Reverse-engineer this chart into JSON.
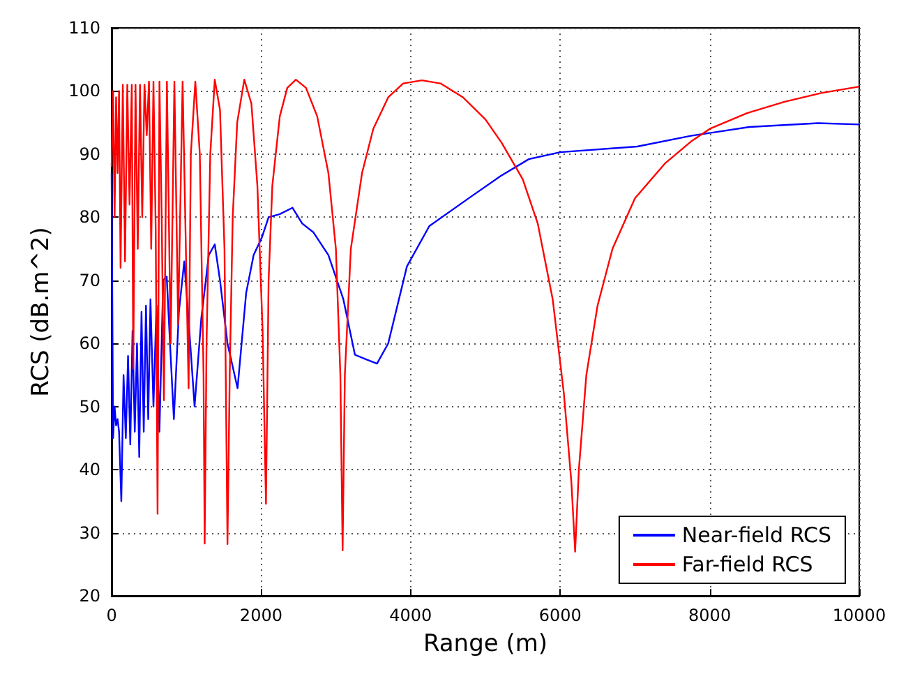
{
  "chart_data": {
    "type": "line",
    "xlabel": "Range (m)",
    "ylabel": "RCS (dB.m^2)",
    "xlim": [
      0,
      10000
    ],
    "xticks": [
      0,
      2000,
      4000,
      6000,
      8000,
      10000
    ],
    "ylim": [
      20,
      110
    ],
    "yticks": [
      20,
      30,
      40,
      50,
      60,
      70,
      80,
      90,
      100,
      110
    ],
    "grid": true,
    "legend": "bottom right",
    "marker": "none",
    "line_style": "solid",
    "series": [
      {
        "name": "Near-field RCS",
        "color": "#0000ff",
        "x": [
          0,
          20,
          40,
          60,
          80,
          100,
          130,
          160,
          190,
          220,
          250,
          280,
          310,
          340,
          370,
          400,
          430,
          460,
          490,
          520,
          560,
          600,
          640,
          690,
          737,
          790,
          833,
          900,
          972,
          1040,
          1110,
          1200,
          1300,
          1380,
          1450,
          1550,
          1685,
          1800,
          1900,
          2010,
          2100,
          2250,
          2420,
          2550,
          2700,
          2900,
          3100,
          3255,
          3400,
          3550,
          3700,
          3950,
          4250,
          4800,
          5200,
          5580,
          6000,
          7030,
          7750,
          8530,
          9450,
          10000
        ],
        "values": [
          87,
          45,
          50,
          47,
          48,
          46,
          35,
          55,
          45,
          58,
          44,
          62,
          46,
          60,
          42,
          65,
          46,
          66,
          48,
          67,
          50,
          66,
          46,
          70,
          70.6,
          58,
          48,
          65,
          73,
          62,
          50,
          64,
          74,
          75.7,
          70,
          60,
          52.9,
          68,
          74,
          76.8,
          80,
          80.5,
          81.5,
          79,
          77.6,
          74,
          67,
          58.2,
          57.5,
          56.8,
          60,
          72.2,
          78.6,
          83.2,
          86.5,
          89.2,
          90.3,
          91.2,
          92.9,
          94.3,
          94.9,
          94.7
        ]
      },
      {
        "name": "Far-field RCS",
        "color": "#ff0000",
        "x": [
          0,
          20,
          40,
          60,
          80,
          100,
          120,
          150,
          180,
          210,
          240,
          270,
          290,
          320,
          350,
          380,
          410,
          440,
          470,
          500,
          530,
          560,
          590,
          615,
          640,
          670,
          700,
          740,
          790,
          840,
          890,
          950,
          1030,
          1060,
          1120,
          1180,
          1230,
          1245,
          1270,
          1320,
          1380,
          1450,
          1510,
          1550,
          1580,
          1620,
          1680,
          1775,
          1870,
          1950,
          2020,
          2065,
          2100,
          2150,
          2250,
          2350,
          2465,
          2600,
          2750,
          2900,
          3000,
          3060,
          3090,
          3120,
          3200,
          3350,
          3500,
          3700,
          3900,
          4150,
          4400,
          4700,
          5000,
          5217,
          5500,
          5700,
          5900,
          6050,
          6150,
          6200,
          6250,
          6350,
          6500,
          6700,
          7000,
          7400,
          7750,
          8000,
          8500,
          9000,
          9500,
          10000
        ],
        "values": [
          88,
          100,
          80,
          99,
          87,
          100,
          72,
          101,
          73,
          101,
          82,
          101,
          56,
          101,
          75,
          101,
          80,
          101,
          93,
          101.5,
          75,
          101.5,
          78,
          33,
          101.5,
          80,
          51,
          101.5,
          60,
          101.5,
          63,
          101.5,
          52.9,
          90,
          101.5,
          90,
          55,
          28.3,
          60,
          90,
          101.8,
          97,
          75,
          28.2,
          55,
          80,
          95,
          101.8,
          98,
          85,
          62,
          34.6,
          70,
          85,
          96,
          100.5,
          101.8,
          100.5,
          96,
          87,
          75,
          55,
          27.2,
          55,
          75,
          87,
          94,
          99,
          101.2,
          101.7,
          101.2,
          99,
          95.5,
          91.8,
          86,
          79,
          67,
          52,
          38,
          27,
          40,
          55,
          66,
          75,
          83,
          88.5,
          92,
          94,
          96.5,
          98.3,
          99.7,
          100.7
        ]
      }
    ]
  }
}
